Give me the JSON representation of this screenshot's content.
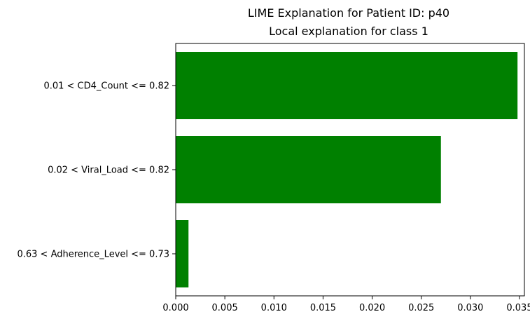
{
  "figure_title": "LIME Explanation for Patient ID: p40",
  "chart_data": {
    "type": "bar",
    "orientation": "horizontal",
    "title": "Local explanation for class 1",
    "categories": [
      "0.01 < CD4_Count <= 0.82",
      "0.02 < Viral_Load <= 0.82",
      "0.63 < Adherence_Level <= 0.73"
    ],
    "values": [
      0.0348,
      0.027,
      0.0013
    ],
    "xlabel": "",
    "ylabel": "",
    "xlim": [
      0.0,
      0.0355
    ],
    "xticks": [
      0.0,
      0.005,
      0.01,
      0.015,
      0.02,
      0.025,
      0.03,
      0.035
    ],
    "xtick_labels": [
      "0.000",
      "0.005",
      "0.010",
      "0.015",
      "0.020",
      "0.025",
      "0.030",
      "0.035"
    ],
    "bar_color": "#008000",
    "grid": false,
    "legend": false
  }
}
